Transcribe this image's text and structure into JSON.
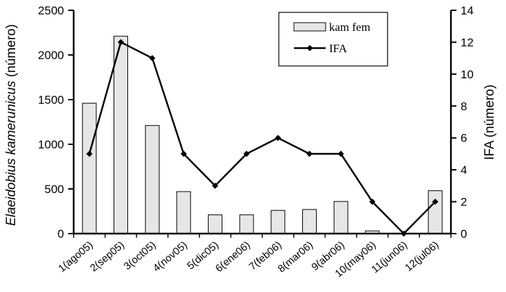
{
  "chart_data": {
    "type": "bar",
    "categories": [
      "1(ago05)",
      "2(sep05)",
      "3(oct05)",
      "4(nov05)",
      "5(dic05)",
      "6(ene06)",
      "7(feb06)",
      "8(mar06)",
      "9(abr06)",
      "10(may06)",
      "11(jun06)",
      "12(jul06)"
    ],
    "series": [
      {
        "name": "kam fem",
        "type": "bar",
        "axis": "left",
        "color": "#e6e6e6",
        "values": [
          1460,
          2210,
          1210,
          470,
          210,
          210,
          260,
          270,
          360,
          30,
          0,
          480
        ]
      },
      {
        "name": "IFA",
        "type": "line",
        "axis": "right",
        "color": "#000000",
        "values": [
          5,
          12,
          11,
          5,
          3,
          5,
          6,
          5,
          5,
          2,
          0,
          2
        ]
      }
    ],
    "y_left": {
      "label_italic": "Elaeidobius kamerunicus",
      "label_suffix": " (número)",
      "ticks": [
        "0",
        "500",
        "1000",
        "1500",
        "2000",
        "2500"
      ],
      "ylim": [
        0,
        2500
      ]
    },
    "y_right": {
      "label": "IFA  (número)",
      "ticks": [
        "0",
        "2",
        "4",
        "6",
        "8",
        "10",
        "12",
        "14"
      ],
      "ylim": [
        0,
        14
      ]
    },
    "legend": {
      "position": "top-right",
      "entries": [
        "kam fem",
        "IFA"
      ]
    },
    "grid": false
  }
}
